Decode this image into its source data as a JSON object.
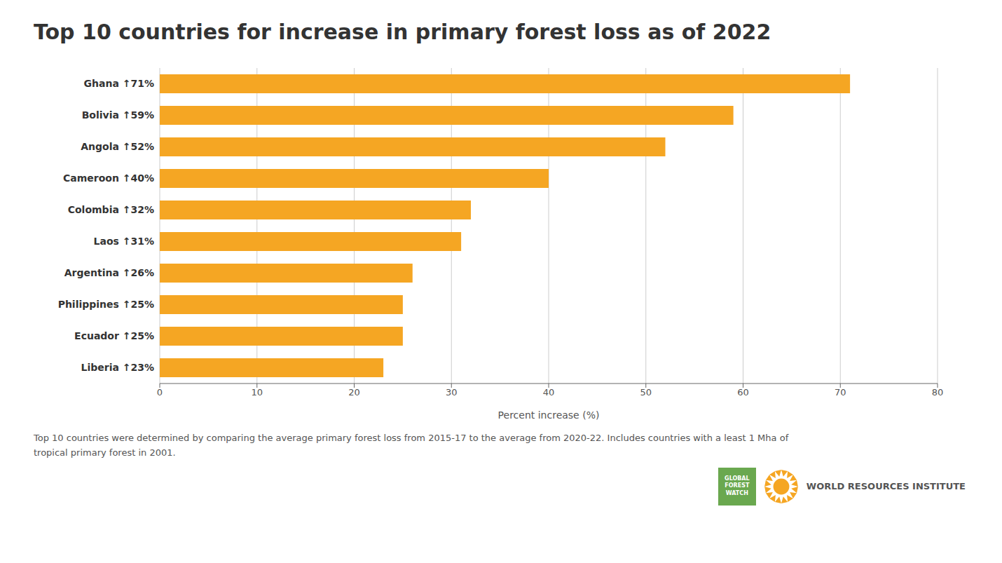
{
  "chart_data": {
    "type": "bar",
    "orientation": "horizontal",
    "title": "Top 10 countries for increase in primary forest loss as of 2022",
    "categories": [
      "Ghana ↑71%",
      "Bolivia ↑59%",
      "Angola ↑52%",
      "Cameroon ↑40%",
      "Colombia ↑32%",
      "Laos ↑31%",
      "Argentina ↑26%",
      "Philippines ↑25%",
      "Ecuador ↑25%",
      "Liberia ↑23%"
    ],
    "values": [
      71,
      59,
      52,
      40,
      32,
      31,
      26,
      25,
      25,
      23
    ],
    "color": "#F5A623",
    "xlabel": "Percent increase (%)",
    "xlim": [
      0,
      80
    ],
    "xticks": [
      0,
      10,
      20,
      30,
      40,
      50,
      60,
      70,
      80
    ],
    "grid": true,
    "annotations": [
      "Top 10 countries were determined by comparing the average primary forest loss from 2015-17 to the average from 2020-22. Includes countries with a least 1 Mha of\ntropical primary forest in 2001.",
      "WORLD RESOURCES INSTITUTE",
      "GLOBAL",
      "FOREST",
      "WATCH"
    ]
  }
}
